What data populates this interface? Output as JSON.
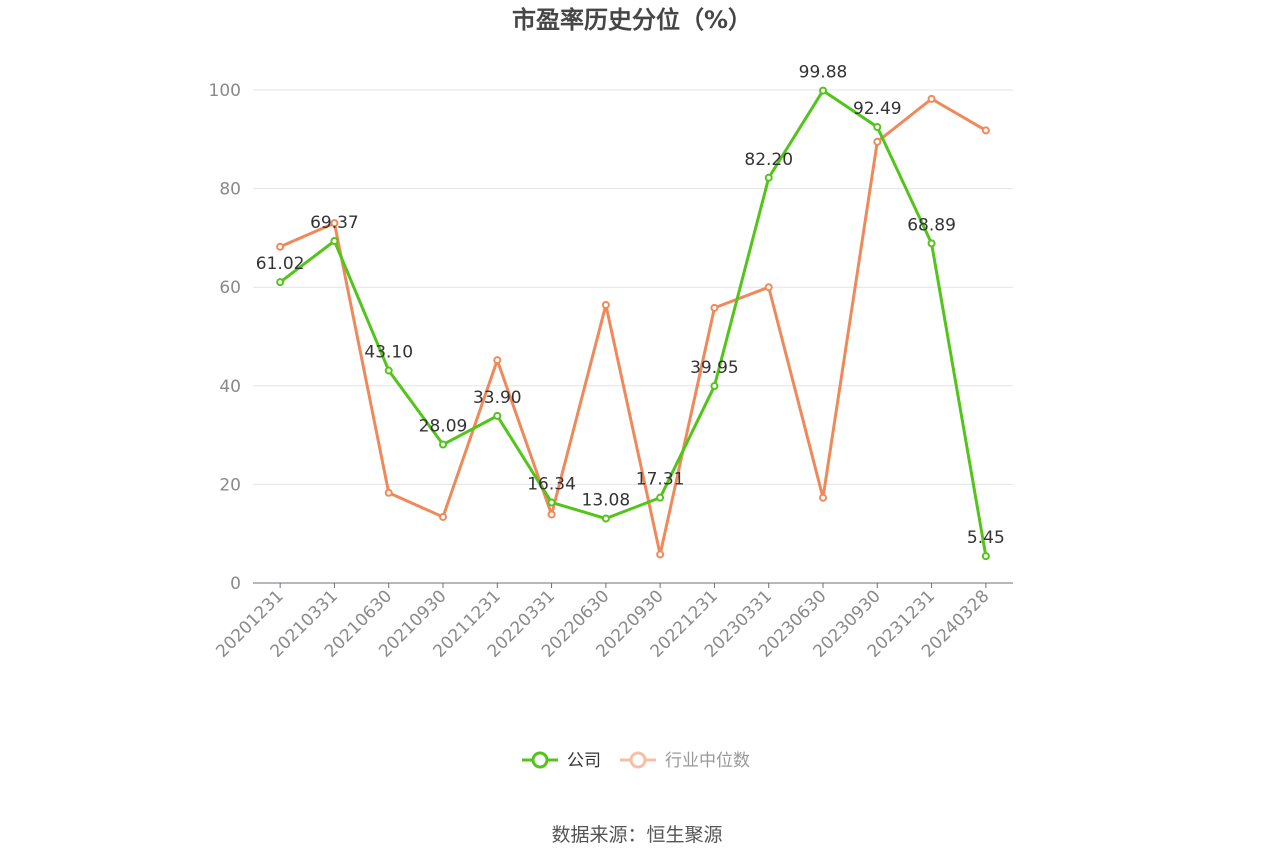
{
  "chart_data": {
    "type": "line",
    "title": "市盈率历史分位（%）",
    "categories": [
      "20201231",
      "20210331",
      "20210630",
      "20210930",
      "20211231",
      "20220331",
      "20220630",
      "20220930",
      "20221231",
      "20230331",
      "20230630",
      "20230930",
      "20231231",
      "20240328"
    ],
    "series": [
      {
        "name": "公司",
        "color": "#52c41a",
        "values": [
          61.02,
          69.37,
          43.1,
          28.09,
          33.9,
          16.34,
          13.08,
          17.31,
          39.95,
          82.2,
          99.88,
          92.49,
          68.89,
          5.45
        ],
        "labels": [
          "61.02",
          "69.37",
          "43.10",
          "28.09",
          "33.90",
          "16.34",
          "13.08",
          "17.31",
          "39.95",
          "82.20",
          "99.88",
          "92.49",
          "68.89",
          "5.45"
        ]
      },
      {
        "name": "行业中位数",
        "color": "#f0895a",
        "legend_color": "#f6bfa5",
        "values": [
          68.2,
          73.0,
          18.3,
          13.4,
          45.2,
          13.9,
          56.4,
          5.8,
          55.8,
          60.0,
          17.3,
          89.5,
          98.2,
          91.8
        ]
      }
    ],
    "ylim": [
      0,
      100
    ],
    "yticks": [
      "0",
      "20",
      "40",
      "60",
      "80",
      "100"
    ],
    "grid": true,
    "legend_position": "bottom-center"
  },
  "source_text": "数据来源：恒生聚源"
}
